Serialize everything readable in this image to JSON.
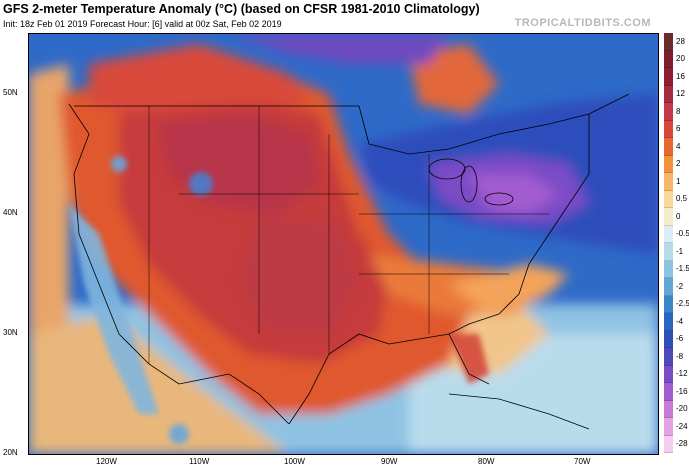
{
  "header": {
    "title": "GFS 2-meter Temperature Anomaly (°C) (based on CFSR 1981-2010 Climatology)",
    "subtitle": "Init: 18z Feb 01 2019   Forecast Hour: [6]   valid at 00z Sat, Feb 02 2019",
    "brand": "TROPICALTIDBITS.COM"
  },
  "map": {
    "lat_labels": [
      "50N",
      "40N",
      "30N",
      "20N"
    ],
    "lon_labels": [
      "120W",
      "110W",
      "100W",
      "90W",
      "80W",
      "70W"
    ]
  },
  "colorbar": {
    "levels": [
      {
        "label": "28",
        "color": "#6a2b2b"
      },
      {
        "label": "20",
        "color": "#7b1f2f"
      },
      {
        "label": "16",
        "color": "#8e1c35"
      },
      {
        "label": "12",
        "color": "#a52a3f"
      },
      {
        "label": "8",
        "color": "#c5384a"
      },
      {
        "label": "6",
        "color": "#d9473b"
      },
      {
        "label": "4",
        "color": "#e8662f"
      },
      {
        "label": "2",
        "color": "#f2923a"
      },
      {
        "label": "1",
        "color": "#f6b866"
      },
      {
        "label": "0.5",
        "color": "#f8d99a"
      },
      {
        "label": "0",
        "color": "#f7ecc9"
      },
      {
        "label": "-0.5",
        "color": "#dbeef3"
      },
      {
        "label": "-1",
        "color": "#b5dce9"
      },
      {
        "label": "-1.5",
        "color": "#8cc3e0"
      },
      {
        "label": "-2",
        "color": "#62a6d6"
      },
      {
        "label": "-2.5",
        "color": "#3c86ca"
      },
      {
        "label": "-4",
        "color": "#2a66bf"
      },
      {
        "label": "-6",
        "color": "#2f4fb7"
      },
      {
        "label": "-8",
        "color": "#5048b5"
      },
      {
        "label": "-12",
        "color": "#7a4cc1"
      },
      {
        "label": "-16",
        "color": "#a35bd0"
      },
      {
        "label": "-20",
        "color": "#c97ad9"
      },
      {
        "label": "-24",
        "color": "#e3a3e3"
      },
      {
        "label": "-28",
        "color": "#f3cdef"
      }
    ]
  }
}
